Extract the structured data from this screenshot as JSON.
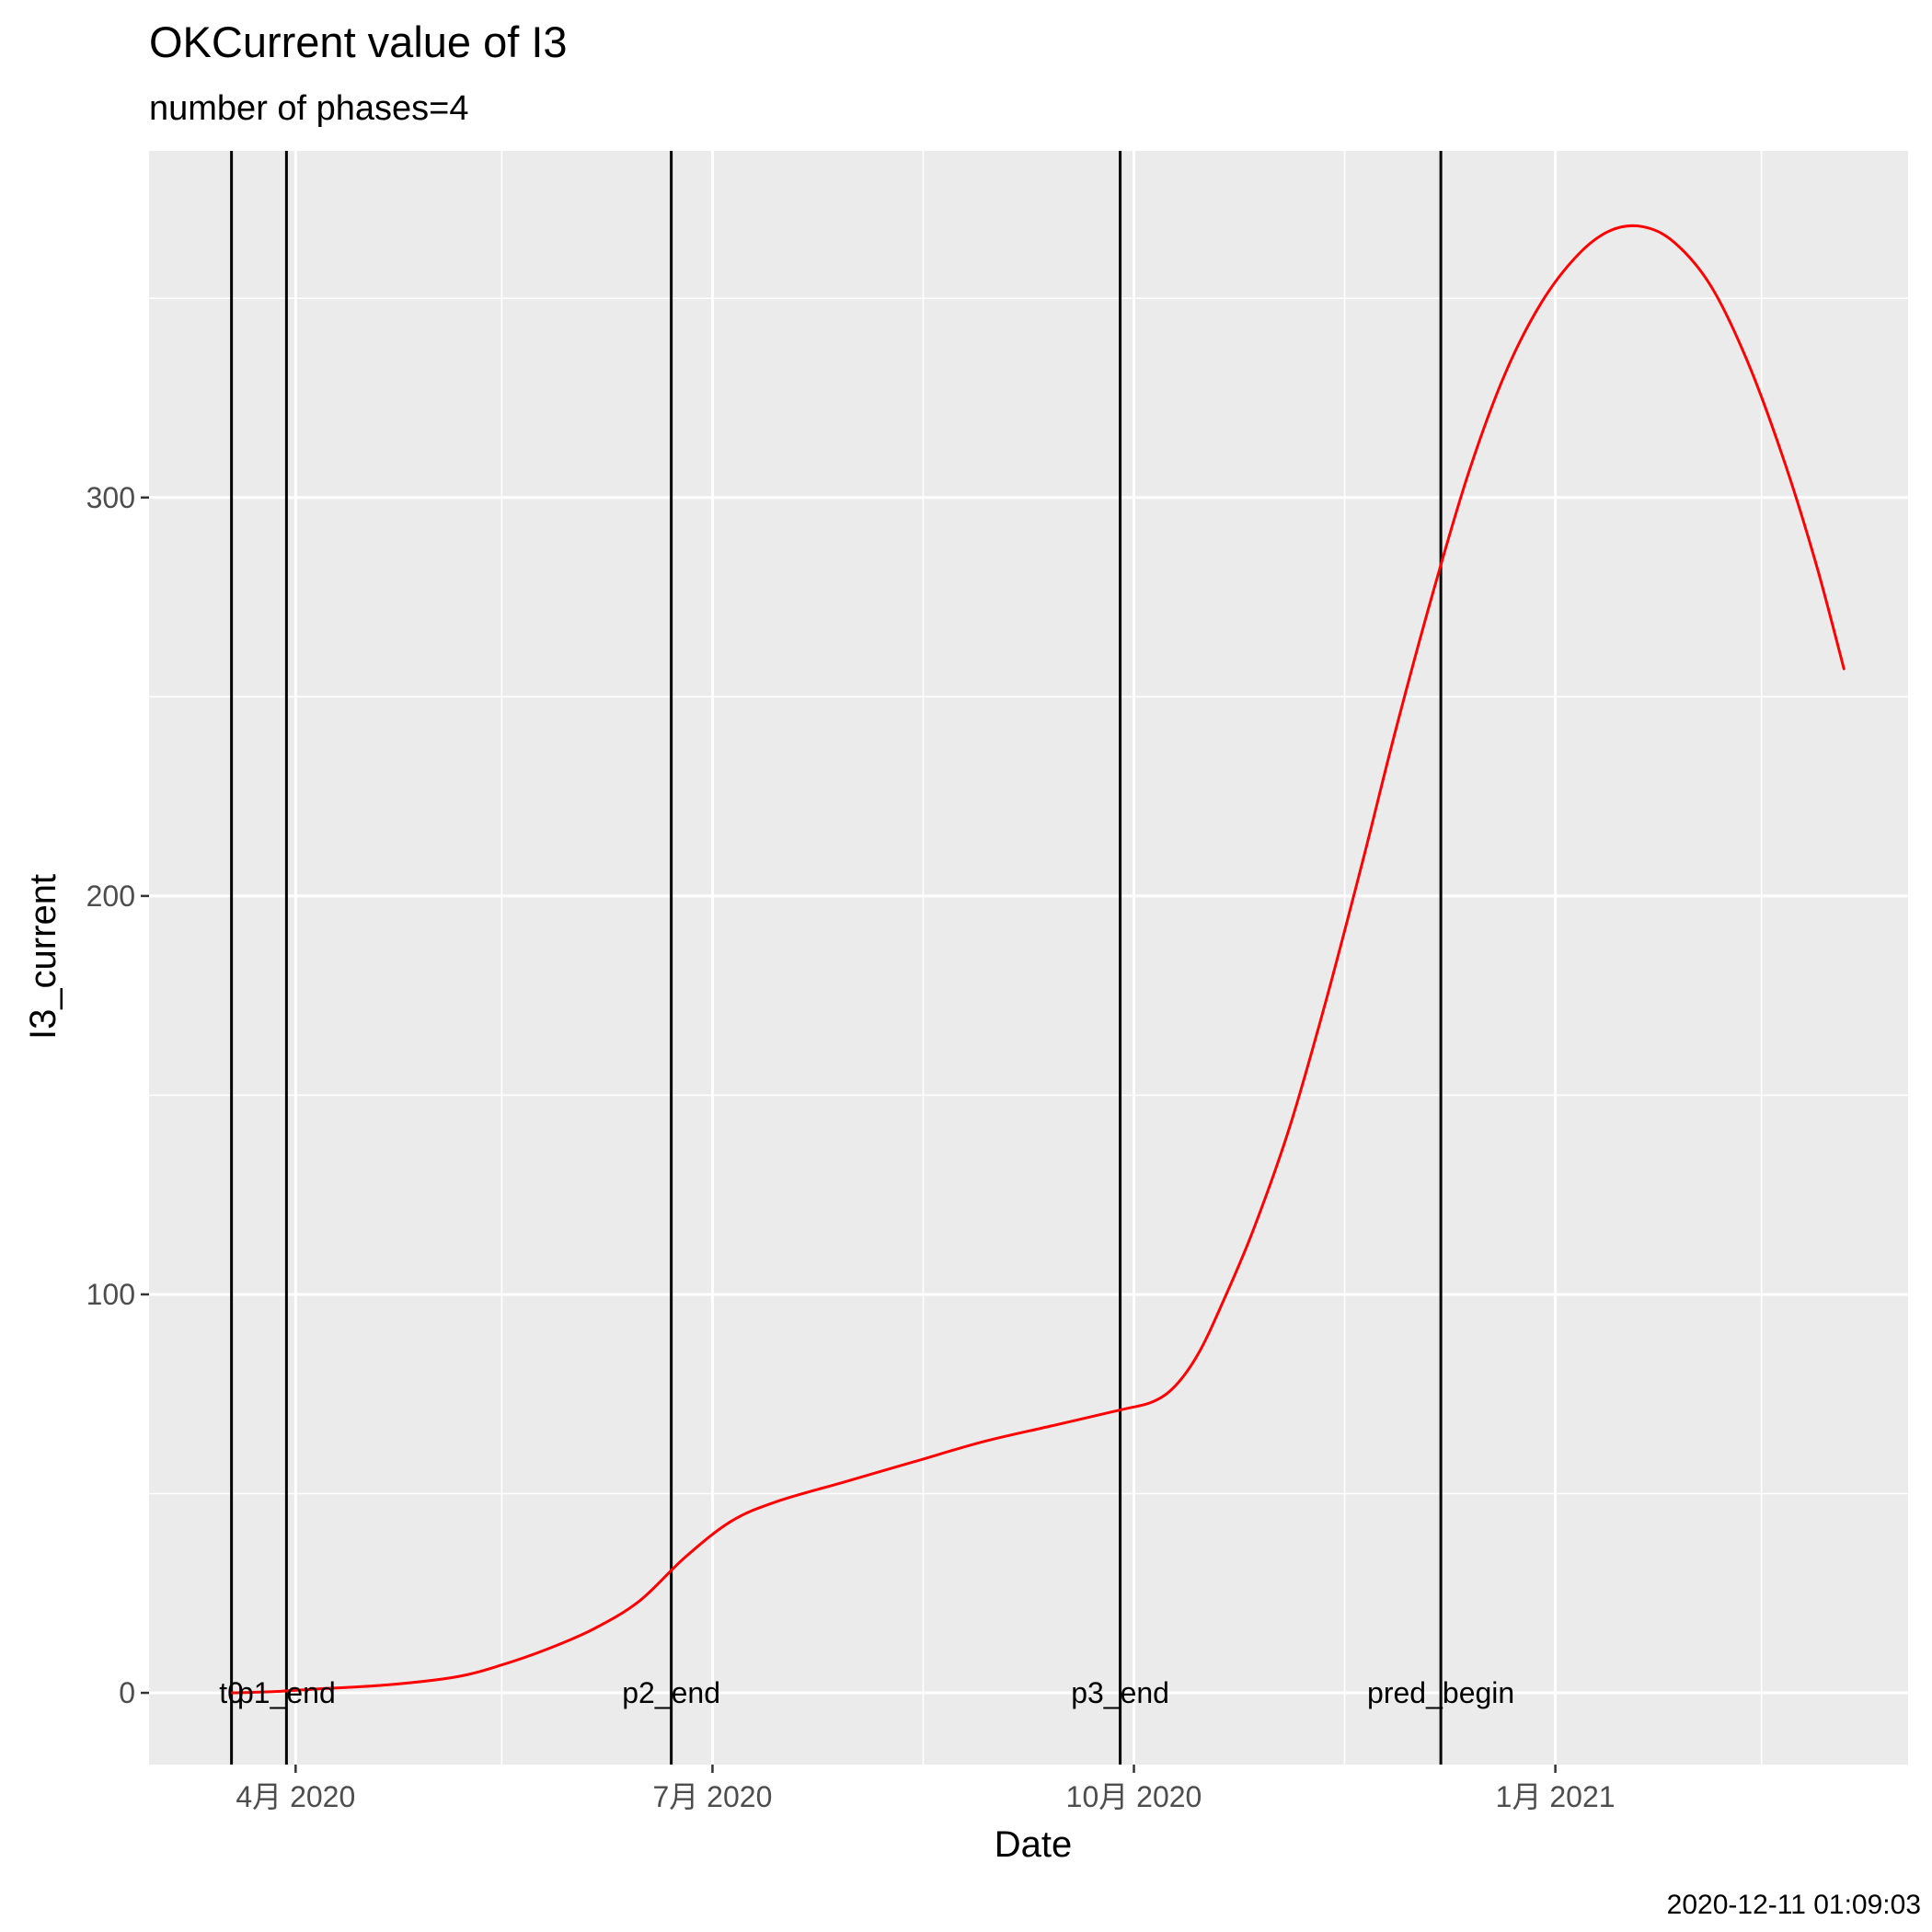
{
  "chart_data": {
    "type": "line",
    "title": "OKCurrent value of I3",
    "subtitle": "number of phases=4",
    "xlabel": "Date",
    "ylabel": "I3_current",
    "caption": "2020-12-11 01:09:03",
    "xlim": [
      "2020-02-29",
      "2021-03-19"
    ],
    "ylim": [
      -18,
      387
    ],
    "grid": true,
    "x_ticks": [
      {
        "date": "2020-04-01",
        "label": "4月 2020"
      },
      {
        "date": "2020-07-01",
        "label": "7月 2020"
      },
      {
        "date": "2020-10-01",
        "label": "10月 2020"
      },
      {
        "date": "2021-01-01",
        "label": "1月 2021"
      }
    ],
    "x_minor_ticks": [
      "2020-05-16",
      "2020-08-16",
      "2020-11-16",
      "2021-02-15"
    ],
    "y_ticks": [
      0,
      100,
      200,
      300
    ],
    "y_minor_ticks": [
      50,
      150,
      250,
      350
    ],
    "series": [
      {
        "color": "#ff0000",
        "points": [
          {
            "x": "2020-03-18",
            "y": 0
          },
          {
            "x": "2020-03-27",
            "y": 0.3
          },
          {
            "x": "2020-04-06",
            "y": 1
          },
          {
            "x": "2020-04-21",
            "y": 2
          },
          {
            "x": "2020-05-06",
            "y": 4
          },
          {
            "x": "2020-05-16",
            "y": 7
          },
          {
            "x": "2020-05-26",
            "y": 11
          },
          {
            "x": "2020-06-05",
            "y": 16
          },
          {
            "x": "2020-06-15",
            "y": 23
          },
          {
            "x": "2020-06-25",
            "y": 34
          },
          {
            "x": "2020-07-05",
            "y": 43
          },
          {
            "x": "2020-07-15",
            "y": 48
          },
          {
            "x": "2020-07-30",
            "y": 53
          },
          {
            "x": "2020-08-14",
            "y": 58
          },
          {
            "x": "2020-08-29",
            "y": 63
          },
          {
            "x": "2020-09-13",
            "y": 67
          },
          {
            "x": "2020-09-28",
            "y": 71
          },
          {
            "x": "2020-10-05",
            "y": 73
          },
          {
            "x": "2020-10-10",
            "y": 77
          },
          {
            "x": "2020-10-15",
            "y": 85
          },
          {
            "x": "2020-10-20",
            "y": 97
          },
          {
            "x": "2020-10-27",
            "y": 116
          },
          {
            "x": "2020-11-04",
            "y": 142
          },
          {
            "x": "2020-11-12",
            "y": 174
          },
          {
            "x": "2020-11-20",
            "y": 209
          },
          {
            "x": "2020-11-27",
            "y": 241
          },
          {
            "x": "2020-12-05",
            "y": 275
          },
          {
            "x": "2020-12-13",
            "y": 306
          },
          {
            "x": "2020-12-21",
            "y": 331
          },
          {
            "x": "2020-12-29",
            "y": 349
          },
          {
            "x": "2021-01-06",
            "y": 361
          },
          {
            "x": "2021-01-13",
            "y": 367
          },
          {
            "x": "2021-01-20",
            "y": 368
          },
          {
            "x": "2021-01-27",
            "y": 364
          },
          {
            "x": "2021-02-04",
            "y": 353
          },
          {
            "x": "2021-02-12",
            "y": 334
          },
          {
            "x": "2021-02-20",
            "y": 309
          },
          {
            "x": "2021-02-27",
            "y": 283
          },
          {
            "x": "2021-03-05",
            "y": 257
          }
        ]
      }
    ],
    "vlines": [
      {
        "date": "2020-03-18",
        "label": "t0"
      },
      {
        "date": "2020-03-30",
        "label": "p1_end"
      },
      {
        "date": "2020-06-22",
        "label": "p2_end"
      },
      {
        "date": "2020-09-28",
        "label": "p3_end"
      },
      {
        "date": "2020-12-07",
        "label": "pred_begin"
      }
    ]
  }
}
